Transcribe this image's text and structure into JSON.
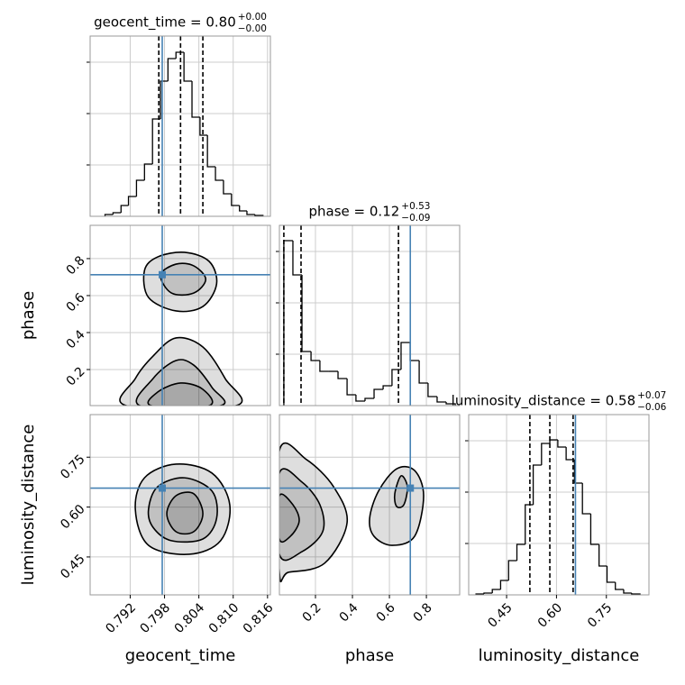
{
  "chart_data": {
    "type": "corner",
    "truth_color": "#4682b4",
    "hist_ylim": [
      0,
      1
    ],
    "hist_yticks": [
      0.285,
      0.57,
      0.855
    ],
    "grid": true,
    "parameters": [
      {
        "name": "geocent_time",
        "title": "geocent_time = 0.80",
        "title_plus": "+0.00",
        "title_minus": "−0.00",
        "xlim": [
          0.785,
          0.8165
        ],
        "xticks": [
          0.792,
          0.798,
          0.804,
          {
            "value": 0.81,
            "label": "0.810"
          },
          0.816
        ],
        "truth": 0.7976,
        "quantiles": [
          0.797,
          0.8008,
          0.8047
        ],
        "bins": [
          0.7876,
          0.789,
          0.7904,
          0.7917,
          0.7931,
          0.7945,
          0.7959,
          0.7973,
          0.7986,
          0.8,
          0.8014,
          0.8028,
          0.8042,
          0.8055,
          0.8069,
          0.8083,
          0.8097,
          0.8111,
          0.8124,
          0.8138,
          0.8152
        ],
        "counts": [
          0.01,
          0.02,
          0.06,
          0.11,
          0.2,
          0.29,
          0.54,
          0.75,
          0.875,
          0.91,
          0.75,
          0.55,
          0.45,
          0.275,
          0.2,
          0.125,
          0.06,
          0.03,
          0.01,
          0.005
        ]
      },
      {
        "name": "phase",
        "title": "phase = 0.12",
        "title_plus": "+0.53",
        "title_minus": "−0.09",
        "xlim": [
          0.005,
          0.98
        ],
        "xticks": [
          0.2,
          0.4,
          0.6,
          0.8
        ],
        "truth": 0.713,
        "quantiles": [
          0.029,
          0.122,
          0.649
        ],
        "bins": [
          0.029,
          0.078,
          0.127,
          0.176,
          0.224,
          0.273,
          0.322,
          0.371,
          0.419,
          0.468,
          0.517,
          0.566,
          0.614,
          0.663,
          0.712,
          0.761,
          0.809,
          0.858,
          0.907,
          0.956
        ],
        "counts": [
          0.915,
          0.725,
          0.3,
          0.25,
          0.19,
          0.19,
          0.15,
          0.06,
          0.025,
          0.04,
          0.09,
          0.11,
          0.2,
          0.35,
          0.25,
          0.125,
          0.05,
          0.02,
          0.01
        ]
      },
      {
        "name": "luminosity_distance",
        "title": "luminosity_distance = 0.58",
        "title_plus": "+0.07",
        "title_minus": "−0.06",
        "xlim": [
          0.336,
          0.878
        ],
        "xticks": [
          0.45,
          {
            "value": 0.6,
            "label": "0.60"
          },
          0.75
        ],
        "truth": 0.657,
        "quantiles": [
          0.52,
          0.58,
          0.65
        ],
        "bins": [
          0.358,
          0.382,
          0.407,
          0.432,
          0.456,
          0.481,
          0.506,
          0.53,
          0.555,
          0.58,
          0.604,
          0.629,
          0.654,
          0.678,
          0.703,
          0.728,
          0.752,
          0.777,
          0.802,
          0.826,
          0.851
        ],
        "counts": [
          0.005,
          0.01,
          0.03,
          0.08,
          0.19,
          0.28,
          0.5,
          0.72,
          0.84,
          0.86,
          0.82,
          0.75,
          0.62,
          0.45,
          0.28,
          0.16,
          0.07,
          0.03,
          0.01,
          0.005
        ]
      }
    ],
    "panels": [
      {
        "contours": [
          {
            "x": [
              0.7945,
              0.7968,
              0.8015,
              0.8058,
              0.8071,
              0.8047,
              0.8,
              0.7952
            ],
            "y": [
              0.736,
              0.809,
              0.834,
              0.785,
              0.663,
              0.541,
              0.517,
              0.59
            ]
          },
          {
            "x": [
              0.7973,
              0.8,
              0.8031,
              0.8052,
              0.8031,
              0.7992
            ],
            "y": [
              0.712,
              0.77,
              0.761,
              0.688,
              0.614,
              0.614
            ]
          },
          {
            "x": [
              0.7913,
              0.7929,
              0.796,
              0.8,
              0.8047,
              0.8086,
              0.8105
            ],
            "y": [
              0.005,
              0.151,
              0.273,
              0.371,
              0.322,
              0.151,
              0.005
            ]
          },
          {
            "x": [
              0.7937,
              0.796,
              0.8,
              0.8031,
              0.8063,
              0.8078
            ],
            "y": [
              0.005,
              0.151,
              0.249,
              0.224,
              0.103,
              0.005
            ]
          },
          {
            "x": [
              0.7957,
              0.7968,
              0.8008,
              0.8047,
              0.8058
            ],
            "y": [
              0.005,
              0.078,
              0.127,
              0.093,
              0.005
            ]
          }
        ]
      },
      {
        "contours": [
          {
            "x": [
              0.7929,
              0.7945,
              0.8,
              0.8063,
              0.8094,
              0.8078,
              0.8023,
              0.7952
            ],
            "y": [
              0.593,
              0.688,
              0.729,
              0.702,
              0.607,
              0.499,
              0.458,
              0.485
            ]
          },
          {
            "x": [
              0.7952,
              0.7968,
              0.8015,
              0.8063,
              0.8071,
              0.8047,
              0.7992,
              0.796
            ],
            "y": [
              0.593,
              0.661,
              0.688,
              0.648,
              0.566,
              0.504,
              0.499,
              0.539
            ]
          },
          {
            "x": [
              0.7984,
              0.8,
              0.8031,
              0.8047,
              0.8031,
              0.8
            ],
            "y": [
              0.58,
              0.634,
              0.64,
              0.58,
              0.526,
              0.526
            ]
          }
        ]
      },
      {
        "contours": [
          {
            "x": [
              0.005,
              0.151,
              0.298,
              0.371,
              0.249,
              0.054,
              0.005
            ],
            "y": [
              0.77,
              0.743,
              0.661,
              0.553,
              0.431,
              0.404,
              0.404
            ]
          },
          {
            "x": [
              0.005,
              0.127,
              0.224,
              0.239,
              0.127,
              0.005
            ],
            "y": [
              0.702,
              0.675,
              0.607,
              0.526,
              0.466,
              0.458
            ]
          },
          {
            "x": [
              0.005,
              0.078,
              0.112,
              0.064,
              0.005
            ],
            "y": [
              0.634,
              0.607,
              0.558,
              0.512,
              0.504
            ]
          },
          {
            "x": [
              0.493,
              0.541,
              0.639,
              0.736,
              0.785,
              0.736,
              0.614,
              0.517
            ],
            "y": [
              0.566,
              0.648,
              0.715,
              0.71,
              0.634,
              0.512,
              0.485,
              0.512
            ]
          },
          {
            "x": [
              0.629,
              0.663,
              0.697,
              0.678,
              0.639
            ],
            "y": [
              0.64,
              0.694,
              0.661,
              0.607,
              0.602
            ]
          }
        ]
      }
    ]
  }
}
